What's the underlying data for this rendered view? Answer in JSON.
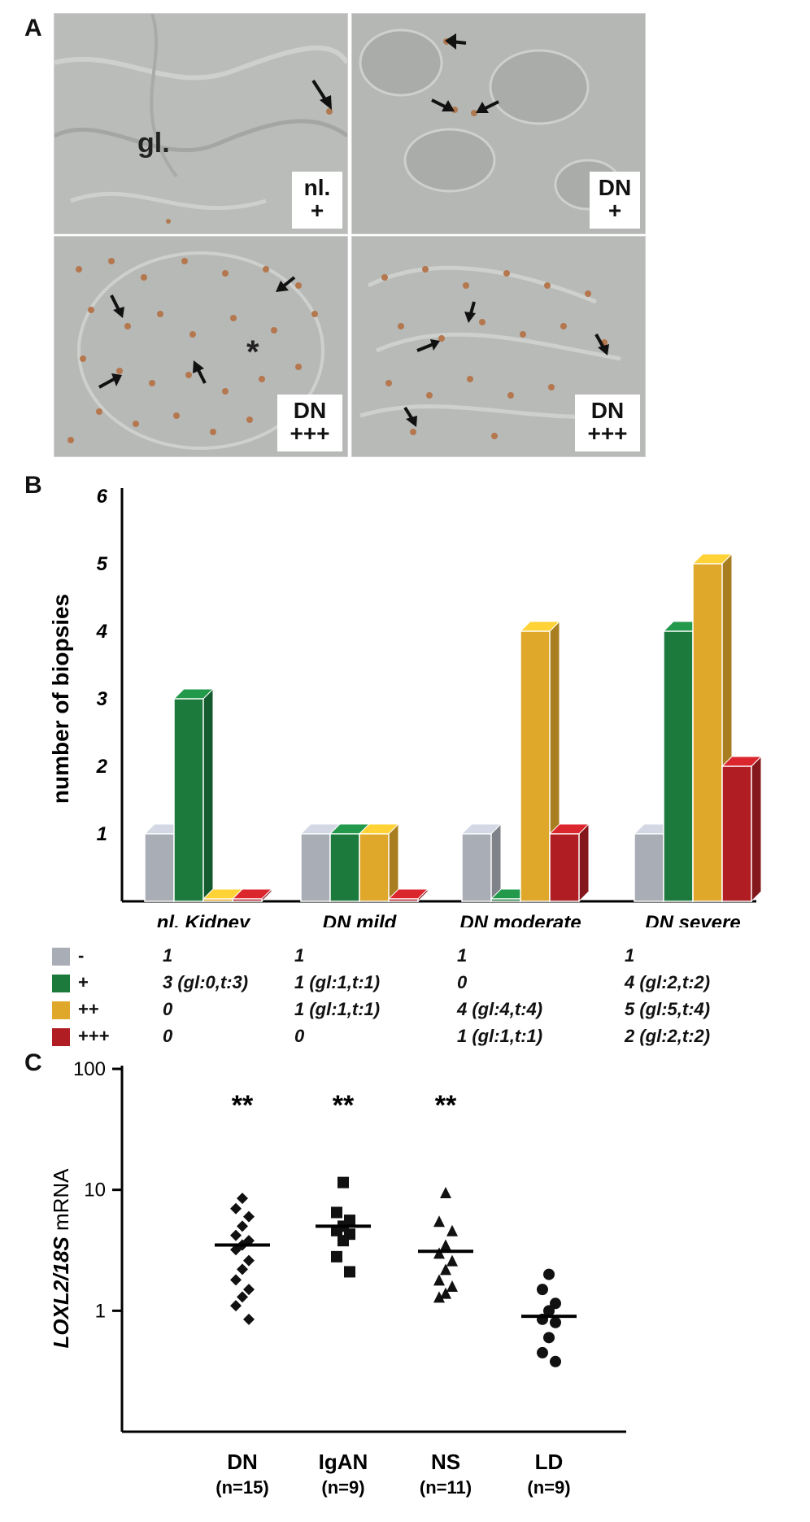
{
  "panel_a": {
    "letter": "A",
    "images": [
      {
        "label_line1": "nl.",
        "label_line2": "+",
        "annotation": "gl."
      },
      {
        "label_line1": "DN",
        "label_line2": "+"
      },
      {
        "label_line1": "DN",
        "label_line2": "+++",
        "annotation": "*"
      },
      {
        "label_line1": "DN",
        "label_line2": "+++"
      }
    ]
  },
  "panel_b": {
    "letter": "B"
  },
  "panel_c": {
    "letter": "C"
  },
  "colors": {
    "neg": "#a9adb6",
    "plus": "#1b7a3c",
    "plusplus": "#e0a82a",
    "plusplusplus": "#b01e24"
  },
  "legend_rows": [
    {
      "symbol": "-",
      "color_key": "neg",
      "values": [
        "1",
        "1",
        "1",
        "1"
      ]
    },
    {
      "symbol": "+",
      "color_key": "plus",
      "values": [
        "3 (gl:0,t:3)",
        "1 (gl:1,t:1)",
        "0",
        "4 (gl:2,t:2)"
      ]
    },
    {
      "symbol": "++",
      "color_key": "plusplus",
      "values": [
        "0",
        "1 (gl:1,t:1)",
        "4 (gl:4,t:4)",
        "5 (gl:5,t:4)"
      ]
    },
    {
      "symbol": "+++",
      "color_key": "plusplusplus",
      "values": [
        "0",
        "0",
        "1 (gl:1,t:1)",
        "2 (gl:2,t:2)"
      ]
    }
  ],
  "chart_data": [
    {
      "type": "bar",
      "ylabel": "number of biopsies",
      "ylim": [
        0,
        6
      ],
      "yticks": [
        "1",
        "2",
        "3",
        "4",
        "5",
        "6"
      ],
      "categories": [
        "nl. Kidney",
        "DN mild",
        "DN moderate",
        "DN severe"
      ],
      "series": [
        {
          "name": "-",
          "values": [
            1,
            1,
            1,
            1
          ]
        },
        {
          "name": "+",
          "values": [
            3,
            1,
            0,
            4
          ]
        },
        {
          "name": "++",
          "values": [
            0,
            1,
            4,
            5
          ]
        },
        {
          "name": "+++",
          "values": [
            0,
            0,
            1,
            2
          ]
        }
      ],
      "grid": false
    },
    {
      "type": "scatter",
      "ylabel_italic": "LOXL2/18S",
      "ylabel_rest": " mRNA",
      "yscale": "log",
      "ylim": [
        0.1,
        100
      ],
      "yticks": [
        "1",
        "10",
        "100"
      ],
      "categories": [
        "DN",
        "IgAN",
        "NS",
        "LD"
      ],
      "category_n": [
        "(n=15)",
        "(n=9)",
        "(n=11)",
        "(n=9)"
      ],
      "markers": [
        "diamond",
        "square",
        "triangle",
        "circle"
      ],
      "significance": [
        "**",
        "**",
        "**",
        ""
      ],
      "medians": [
        3.5,
        5.0,
        3.1,
        0.9
      ],
      "points": [
        [
          8.5,
          7.0,
          6.0,
          5.0,
          4.2,
          3.8,
          3.5,
          3.2,
          2.6,
          2.2,
          1.8,
          1.5,
          1.3,
          1.1,
          0.85
        ],
        [
          11.5,
          6.5,
          5.6,
          5.0,
          4.6,
          4.3,
          3.8,
          2.8,
          2.1
        ],
        [
          9.5,
          5.5,
          4.6,
          3.5,
          3.0,
          2.6,
          2.2,
          1.8,
          1.6,
          1.4,
          1.3
        ],
        [
          2.0,
          1.5,
          1.15,
          1.0,
          0.85,
          0.8,
          0.6,
          0.45,
          0.38
        ]
      ],
      "grid": false
    }
  ]
}
